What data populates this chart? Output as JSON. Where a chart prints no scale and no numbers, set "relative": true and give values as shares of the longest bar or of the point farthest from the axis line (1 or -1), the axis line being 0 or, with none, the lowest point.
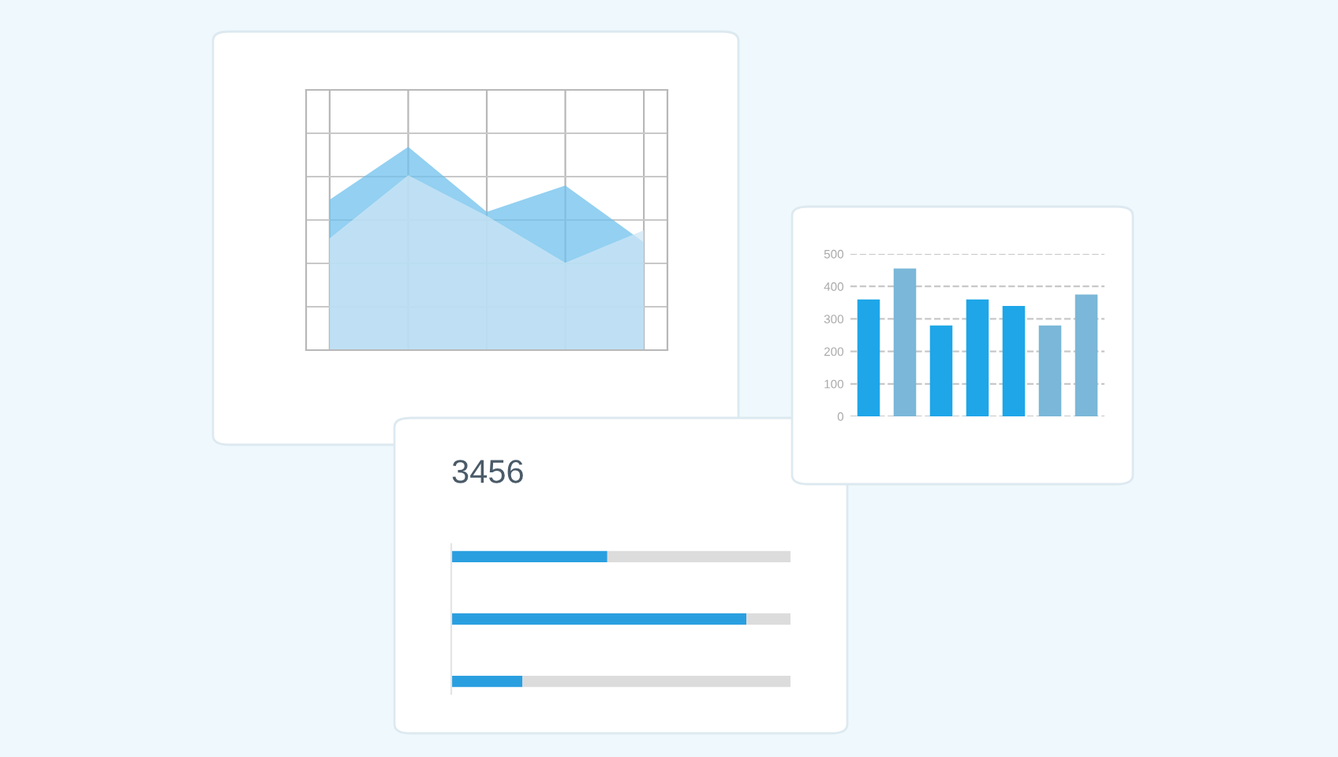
{
  "chart_data": [
    {
      "type": "area",
      "relative": true,
      "categories": [
        null,
        null,
        null,
        null,
        null
      ],
      "grid": true,
      "tick_labels": false,
      "series": [
        {
          "color": "#6fc0ec",
          "values": [
            0.74,
            1.0,
            0.68,
            0.81,
            0.53
          ]
        },
        {
          "color": "#cde6f4",
          "values": [
            0.55,
            0.86,
            0.66,
            0.43,
            0.59
          ]
        }
      ]
    },
    {
      "type": "bar",
      "categories": [
        null,
        null,
        null,
        null,
        null,
        null,
        null
      ],
      "values": [
        360,
        455,
        280,
        360,
        340,
        280,
        375
      ],
      "colors": [
        "#1ea6e8",
        "#7ab7d8",
        "#1ea6e8",
        "#1ea6e8",
        "#1ea6e8",
        "#7ab7d8",
        "#7ab7d8"
      ],
      "ylim": [
        0,
        500
      ],
      "yticks": [
        0,
        100,
        200,
        300,
        400,
        500
      ],
      "grid": "y",
      "tick_labels": "y"
    },
    {
      "type": "bar",
      "title": "3456",
      "orientation": "horizontal",
      "stacked": true,
      "relative": true,
      "categories": [
        null,
        null,
        null
      ],
      "tick_labels": false,
      "series": [
        {
          "color": "#2a9fe0",
          "values": [
            0.46,
            0.87,
            0.21
          ]
        },
        {
          "color": "#dcdcdc",
          "values": [
            0.54,
            0.13,
            0.79
          ]
        }
      ]
    }
  ]
}
